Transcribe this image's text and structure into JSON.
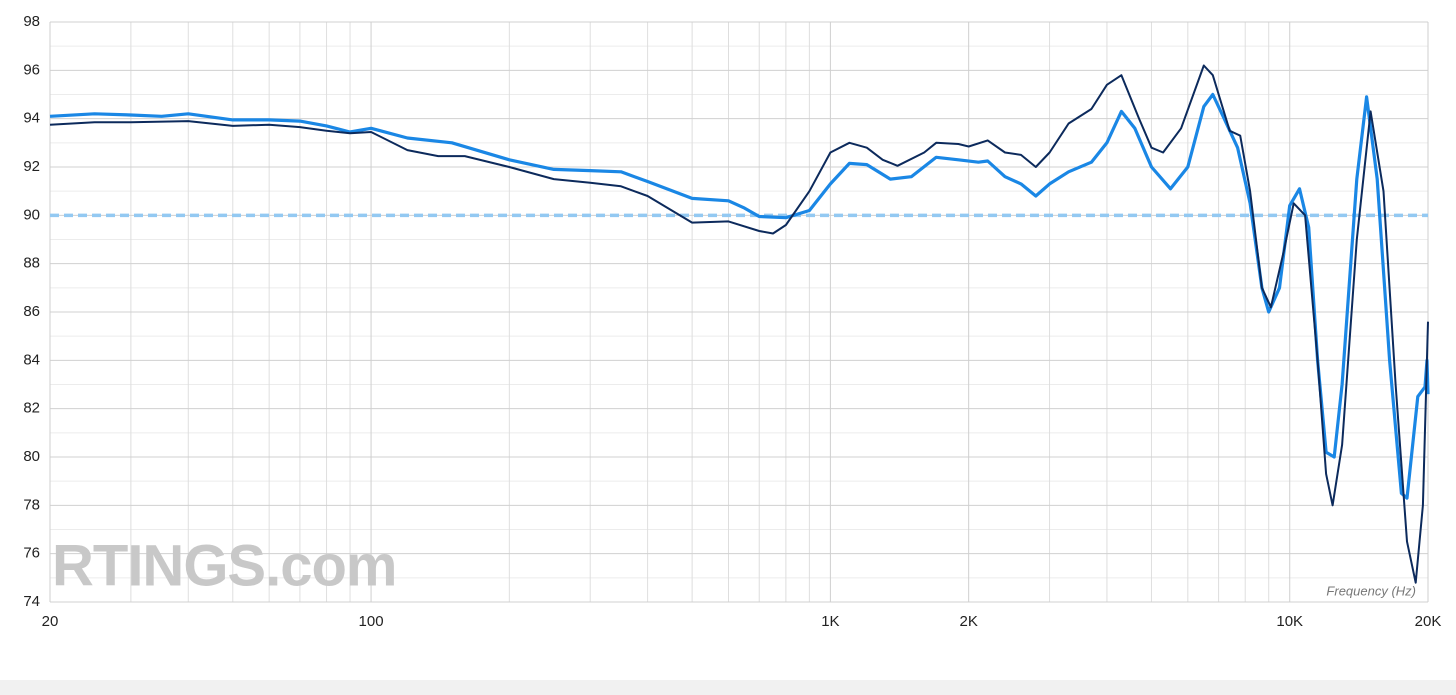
{
  "chart_data": {
    "type": "line",
    "log_x": true,
    "grid": true,
    "xlabel": "Frequency (Hz)",
    "watermark": "RTINGS.com",
    "xlim": [
      20,
      20000
    ],
    "ylim": [
      74,
      98
    ],
    "xticks": [
      20,
      100,
      {
        "value": 1000,
        "label": "1K"
      },
      {
        "value": 2000,
        "label": "2K"
      },
      {
        "value": 10000,
        "label": "10K"
      },
      {
        "value": 20000,
        "label": "20K"
      }
    ],
    "xminor": [
      30,
      40,
      50,
      60,
      70,
      80,
      90,
      200,
      300,
      400,
      500,
      600,
      700,
      800,
      900,
      3000,
      4000,
      5000,
      6000,
      7000,
      8000,
      9000
    ],
    "yticks": [
      74,
      76,
      78,
      80,
      82,
      84,
      86,
      88,
      90,
      92,
      94,
      96,
      98
    ],
    "yminor": [
      75,
      77,
      79,
      81,
      83,
      85,
      87,
      89,
      91,
      93,
      95,
      97
    ],
    "reference": {
      "value": 90,
      "color": "#93c9f2"
    },
    "series": [
      {
        "color": "#1a87e5",
        "x": [
          20,
          25,
          30,
          35,
          40,
          50,
          60,
          70,
          80,
          90,
          100,
          120,
          150,
          200,
          250,
          300,
          350,
          400,
          500,
          600,
          650,
          700,
          800,
          900,
          1000,
          1100,
          1200,
          1350,
          1500,
          1700,
          1900,
          2100,
          2200,
          2400,
          2600,
          2800,
          3000,
          3300,
          3700,
          4000,
          4300,
          4600,
          5000,
          5500,
          6000,
          6500,
          6800,
          7200,
          7700,
          8200,
          8700,
          9000,
          9500,
          10000,
          10500,
          11000,
          11500,
          12000,
          12500,
          13000,
          14000,
          14700,
          15500,
          16500,
          17500,
          18000,
          19000,
          19700,
          19900,
          20000
        ],
        "values": [
          94.1,
          94.2,
          94.15,
          94.1,
          94.2,
          93.95,
          93.95,
          93.9,
          93.7,
          93.45,
          93.6,
          93.2,
          93.0,
          92.3,
          91.9,
          91.85,
          91.8,
          91.4,
          90.7,
          90.6,
          90.3,
          89.95,
          89.9,
          90.2,
          91.3,
          92.15,
          92.1,
          91.5,
          91.6,
          92.4,
          92.3,
          92.2,
          92.25,
          91.6,
          91.3,
          90.8,
          91.3,
          91.8,
          92.2,
          93.0,
          94.3,
          93.6,
          92.0,
          91.1,
          92.0,
          94.5,
          95.0,
          94.0,
          92.8,
          90.5,
          87.0,
          86.0,
          87.0,
          90.4,
          91.1,
          89.5,
          84.0,
          80.2,
          80.0,
          83.0,
          91.5,
          94.9,
          91.5,
          84.0,
          78.5,
          78.3,
          82.5,
          82.9,
          84.0,
          82.6
        ]
      },
      {
        "color": "#0c2a5c",
        "x": [
          20,
          25,
          30,
          40,
          50,
          60,
          70,
          80,
          90,
          100,
          120,
          140,
          160,
          200,
          250,
          300,
          350,
          400,
          500,
          600,
          700,
          750,
          800,
          900,
          1000,
          1100,
          1200,
          1300,
          1400,
          1600,
          1700,
          1900,
          2000,
          2200,
          2400,
          2600,
          2800,
          3000,
          3300,
          3700,
          4000,
          4300,
          4700,
          5000,
          5300,
          5800,
          6500,
          6800,
          7400,
          7800,
          8200,
          8700,
          9100,
          9700,
          10200,
          10800,
          11500,
          12000,
          12400,
          13000,
          14000,
          15000,
          16000,
          17000,
          18000,
          18800,
          19500,
          20000
        ],
        "values": [
          93.75,
          93.85,
          93.85,
          93.9,
          93.7,
          93.75,
          93.65,
          93.5,
          93.4,
          93.45,
          92.7,
          92.45,
          92.45,
          92.0,
          91.5,
          91.35,
          91.2,
          90.8,
          89.7,
          89.75,
          89.35,
          89.25,
          89.6,
          91.0,
          92.6,
          93.0,
          92.8,
          92.3,
          92.05,
          92.6,
          93.0,
          92.95,
          92.85,
          93.1,
          92.6,
          92.5,
          92.0,
          92.6,
          93.8,
          94.4,
          95.4,
          95.8,
          94.0,
          92.8,
          92.6,
          93.6,
          96.2,
          95.8,
          93.5,
          93.3,
          91.0,
          87.0,
          86.2,
          88.5,
          90.5,
          90.0,
          84.0,
          79.3,
          78.0,
          80.5,
          89.0,
          94.3,
          91.0,
          83.0,
          76.5,
          74.8,
          78.0,
          85.6
        ]
      }
    ]
  }
}
